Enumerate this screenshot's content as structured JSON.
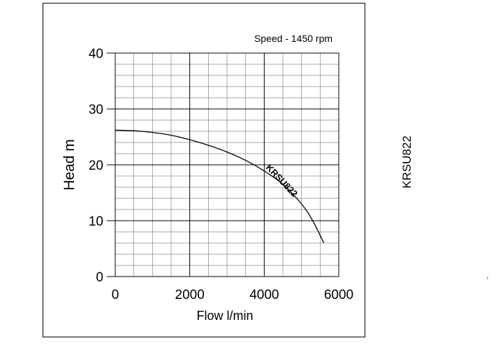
{
  "page": {
    "side_label": "KRSU822"
  },
  "chart_data": {
    "type": "line",
    "annotation": "Speed - 1450 rpm",
    "xlabel": "Flow l/min",
    "ylabel": "Head m",
    "xlim": [
      0,
      6000
    ],
    "ylim": [
      0,
      40
    ],
    "x_ticks": [
      0,
      2000,
      4000,
      6000
    ],
    "y_ticks": [
      0,
      10,
      20,
      30,
      40
    ],
    "x_minor_step": 500,
    "y_minor_step": 2,
    "grid": true,
    "series": [
      {
        "name": "KRSU822",
        "x": [
          0,
          500,
          1000,
          1500,
          2000,
          2500,
          3000,
          3500,
          4000,
          4500,
          5000,
          5300,
          5600
        ],
        "y": [
          26.2,
          26.1,
          25.8,
          25.3,
          24.5,
          23.5,
          22.3,
          20.8,
          18.9,
          16.5,
          13.0,
          10.0,
          6.0
        ]
      }
    ]
  }
}
